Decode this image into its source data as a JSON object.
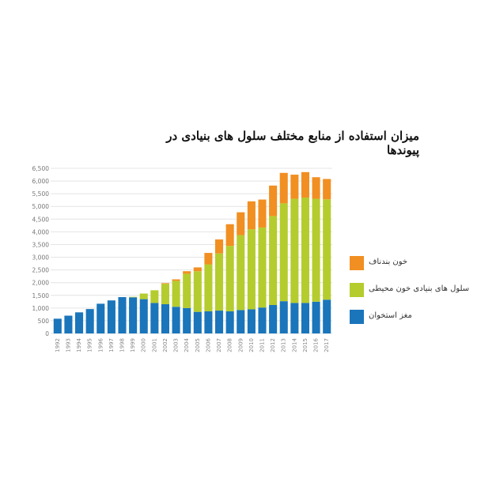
{
  "chart_data": {
    "type": "bar",
    "stacked": true,
    "title": "میزان استفاده از منابع مختلف سلول های بنیادی در پیوندها",
    "categories": [
      "1992",
      "1993",
      "1994",
      "1995",
      "1996",
      "1997",
      "1998",
      "1999",
      "2000",
      "2001",
      "2002",
      "2003",
      "2004",
      "2005",
      "2006",
      "2007",
      "2008",
      "2009",
      "2010",
      "2011",
      "2012",
      "2013",
      "2014",
      "2015",
      "2016",
      "2017"
    ],
    "ylim": [
      0,
      6500
    ],
    "yticks": [
      "0",
      "500",
      "1,000",
      "1,500",
      "2,000",
      "2,500",
      "3,000",
      "3,500",
      "4,000",
      "4,500",
      "5,000",
      "5,500",
      "6,000",
      "6,500"
    ],
    "grid": true,
    "legend_position": "right",
    "series": [
      {
        "name": "مغز استخوان",
        "color": "#1a75bb",
        "values": [
          580,
          700,
          830,
          960,
          1170,
          1300,
          1430,
          1420,
          1350,
          1200,
          1150,
          1050,
          1000,
          850,
          870,
          900,
          870,
          920,
          950,
          1020,
          1120,
          1270,
          1200,
          1200,
          1250,
          1330
        ]
      },
      {
        "name": "سلول های بنیادی خون محیطی",
        "color": "#b5cc2e",
        "values": [
          0,
          0,
          0,
          0,
          0,
          0,
          0,
          20,
          220,
          500,
          800,
          1020,
          1350,
          1600,
          1850,
          2250,
          2580,
          2950,
          3150,
          3150,
          3500,
          3850,
          4100,
          4150,
          4050,
          3950
        ]
      },
      {
        "name": "خون بندناف",
        "color": "#f18f22",
        "values": [
          0,
          0,
          0,
          0,
          0,
          0,
          0,
          0,
          0,
          0,
          30,
          60,
          100,
          150,
          450,
          550,
          850,
          900,
          1100,
          1100,
          1200,
          1200,
          950,
          1000,
          850,
          800
        ]
      }
    ]
  }
}
